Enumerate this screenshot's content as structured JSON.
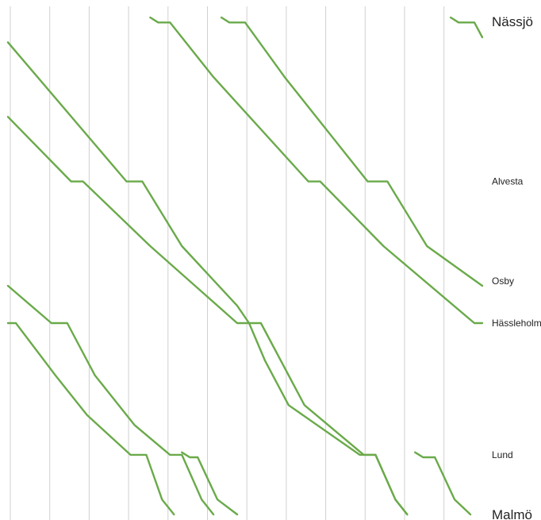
{
  "chart_data": {
    "type": "line",
    "title": "",
    "xlabel": "",
    "ylabel": "",
    "grid": true,
    "x_range": [
      0,
      12
    ],
    "vertical_gridlines": 12,
    "stations": [
      {
        "name": "Nässjö",
        "pos": 0,
        "size": "large"
      },
      {
        "name": "Alvesta",
        "pos": 0.33,
        "size": "small"
      },
      {
        "name": "Osby",
        "pos": 0.53,
        "size": "small"
      },
      {
        "name": "Hässleholm",
        "pos": 0.615,
        "size": "small"
      },
      {
        "name": "Lund",
        "pos": 0.88,
        "size": "small"
      },
      {
        "name": "Malmö",
        "pos": 1.0,
        "size": "large"
      }
    ],
    "colors": {
      "line": "#6aaa4a",
      "grid": "#d0d0d0"
    },
    "series": [
      {
        "points": [
          [
            0,
            0.05
          ],
          [
            3.0,
            0.33
          ],
          [
            3.4,
            0.33
          ],
          [
            4.4,
            0.46
          ],
          [
            5.8,
            0.58
          ],
          [
            6.1,
            0.615
          ],
          [
            6.4,
            0.615
          ],
          [
            7.5,
            0.78
          ],
          [
            9.0,
            0.88
          ],
          [
            9.3,
            0.88
          ],
          [
            9.8,
            0.97
          ],
          [
            10.1,
            1.0
          ]
        ]
      },
      {
        "points": [
          [
            0,
            0.2
          ],
          [
            1.6,
            0.33
          ],
          [
            1.9,
            0.33
          ],
          [
            3.6,
            0.46
          ],
          [
            5.8,
            0.615
          ],
          [
            6.1,
            0.615
          ],
          [
            6.5,
            0.69
          ],
          [
            7.1,
            0.78
          ],
          [
            8.9,
            0.88
          ],
          [
            9.3,
            0.88
          ],
          [
            9.8,
            0.97
          ],
          [
            10.1,
            1.0
          ]
        ]
      },
      {
        "points": [
          [
            3.6,
            0.0
          ],
          [
            3.8,
            0.01
          ],
          [
            4.1,
            0.01
          ],
          [
            5.2,
            0.12
          ],
          [
            7.6,
            0.33
          ],
          [
            7.9,
            0.33
          ],
          [
            9.5,
            0.46
          ],
          [
            11.8,
            0.615
          ],
          [
            12.0,
            0.615
          ]
        ]
      },
      {
        "points": [
          [
            5.4,
            0.0
          ],
          [
            5.6,
            0.01
          ],
          [
            6.0,
            0.01
          ],
          [
            7.0,
            0.12
          ],
          [
            9.1,
            0.33
          ],
          [
            9.6,
            0.33
          ],
          [
            10.6,
            0.46
          ],
          [
            12.0,
            0.54
          ]
        ]
      },
      {
        "points": [
          [
            11.2,
            0.0
          ],
          [
            11.4,
            0.01
          ],
          [
            11.8,
            0.01
          ],
          [
            12.0,
            0.04
          ]
        ]
      },
      {
        "points": [
          [
            0,
            0.54
          ],
          [
            1.1,
            0.615
          ],
          [
            1.5,
            0.615
          ],
          [
            2.2,
            0.72
          ],
          [
            3.2,
            0.82
          ],
          [
            4.1,
            0.88
          ],
          [
            4.4,
            0.88
          ],
          [
            4.9,
            0.97
          ],
          [
            5.2,
            1.0
          ]
        ]
      },
      {
        "points": [
          [
            0,
            0.615
          ],
          [
            0.2,
            0.615
          ],
          [
            1.2,
            0.72
          ],
          [
            2.0,
            0.8
          ],
          [
            3.1,
            0.88
          ],
          [
            3.5,
            0.88
          ],
          [
            3.9,
            0.97
          ],
          [
            4.2,
            1.0
          ]
        ]
      },
      {
        "points": [
          [
            4.4,
            0.875
          ],
          [
            4.6,
            0.885
          ],
          [
            4.8,
            0.885
          ],
          [
            5.3,
            0.97
          ],
          [
            5.8,
            1.0
          ]
        ]
      },
      {
        "points": [
          [
            10.3,
            0.875
          ],
          [
            10.5,
            0.885
          ],
          [
            10.8,
            0.885
          ],
          [
            11.3,
            0.97
          ],
          [
            11.7,
            1.0
          ]
        ]
      }
    ]
  }
}
